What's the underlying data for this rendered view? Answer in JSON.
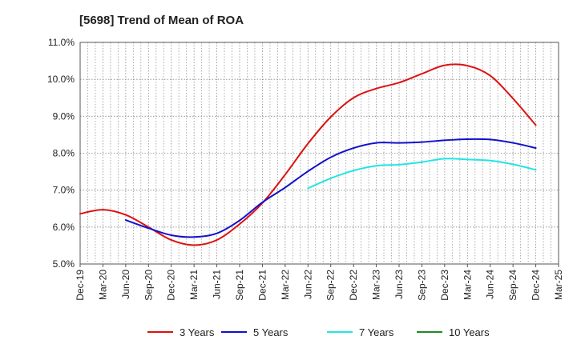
{
  "chart_data": {
    "type": "line",
    "title": "[5698]  Trend of Mean of ROA",
    "xlabel": "",
    "ylabel": "",
    "ylim": [
      5.0,
      11.0
    ],
    "yticks": [
      "5.0%",
      "6.0%",
      "7.0%",
      "8.0%",
      "9.0%",
      "10.0%",
      "11.0%"
    ],
    "ytick_values": [
      5,
      6,
      7,
      8,
      9,
      10,
      11
    ],
    "categories": [
      "Dec-19",
      "Mar-20",
      "Jun-20",
      "Sep-20",
      "Dec-20",
      "Mar-21",
      "Jun-21",
      "Sep-21",
      "Dec-21",
      "Mar-22",
      "Jun-22",
      "Sep-22",
      "Dec-22",
      "Mar-23",
      "Jun-23",
      "Sep-23",
      "Dec-23",
      "Mar-24",
      "Jun-24",
      "Sep-24",
      "Dec-24",
      "Mar-25"
    ],
    "grid": true,
    "legend_position": "bottom",
    "series": [
      {
        "name": "3 Years",
        "color": "#dd1111",
        "values": [
          6.36,
          6.47,
          6.33,
          6.0,
          5.65,
          5.51,
          5.65,
          6.08,
          6.65,
          7.42,
          8.26,
          8.98,
          9.5,
          9.75,
          9.91,
          10.15,
          10.38,
          10.37,
          10.1,
          9.48,
          8.76,
          null
        ]
      },
      {
        "name": "5 Years",
        "color": "#1111cc",
        "values": [
          null,
          null,
          6.19,
          5.97,
          5.78,
          5.73,
          5.83,
          6.18,
          6.67,
          7.07,
          7.51,
          7.89,
          8.14,
          8.28,
          8.28,
          8.3,
          8.35,
          8.38,
          8.37,
          8.28,
          8.14,
          null
        ]
      },
      {
        "name": "7 Years",
        "color": "#22e5e5",
        "values": [
          null,
          null,
          null,
          null,
          null,
          null,
          null,
          null,
          null,
          null,
          7.05,
          7.32,
          7.53,
          7.66,
          7.69,
          7.76,
          7.85,
          7.83,
          7.8,
          7.7,
          7.55,
          null
        ]
      },
      {
        "name": "10 Years",
        "color": "#228822",
        "values": [
          null,
          null,
          null,
          null,
          null,
          null,
          null,
          null,
          null,
          null,
          null,
          null,
          null,
          null,
          null,
          null,
          null,
          null,
          null,
          null,
          null,
          null
        ]
      }
    ]
  }
}
